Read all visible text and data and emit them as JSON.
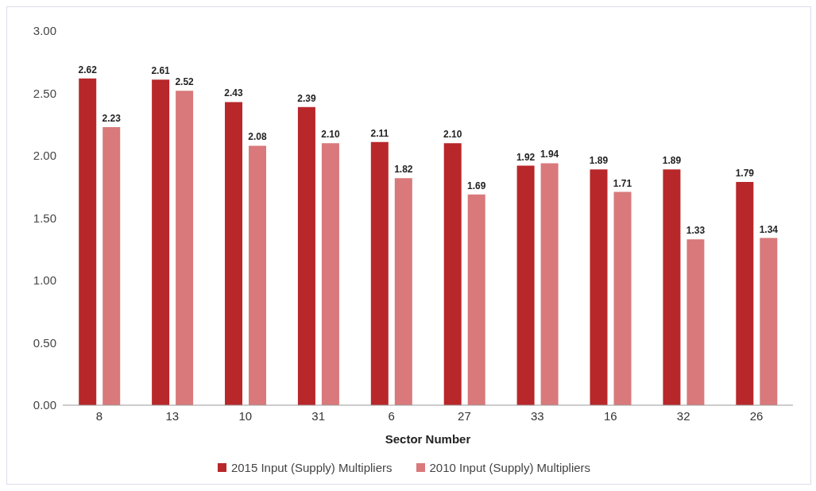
{
  "chart_data": {
    "type": "bar",
    "xlabel": "Sector Number",
    "categories": [
      "8",
      "13",
      "10",
      "31",
      "6",
      "27",
      "33",
      "16",
      "32",
      "26"
    ],
    "series": [
      {
        "name": "2015 Input (Supply) Multipliers",
        "color": "#b8272a",
        "values": [
          2.62,
          2.61,
          2.43,
          2.39,
          2.11,
          2.1,
          1.92,
          1.89,
          1.89,
          1.79
        ],
        "value_labels": [
          "2.62",
          "2.61",
          "2.43",
          "2.39",
          "2.11",
          "2.10",
          "1.92",
          "1.89",
          "1.89",
          "1.79"
        ]
      },
      {
        "name": "2010 Input (Supply) Multipliers",
        "color": "#d9797b",
        "values": [
          2.23,
          2.52,
          2.08,
          2.1,
          1.82,
          1.69,
          1.94,
          1.71,
          1.33,
          1.34
        ],
        "value_labels": [
          "2.23",
          "2.52",
          "2.08",
          "2.10",
          "1.82",
          "1.69",
          "1.94",
          "1.71",
          "1.33",
          "1.34"
        ]
      }
    ],
    "ylim": [
      0,
      3
    ],
    "yticks": [
      {
        "value": 0,
        "label": "0.00"
      },
      {
        "value": 0.5,
        "label": "0.50"
      },
      {
        "value": 1,
        "label": "1.00"
      },
      {
        "value": 1.5,
        "label": "1.50"
      },
      {
        "value": 2,
        "label": "2.00"
      },
      {
        "value": 2.5,
        "label": "2.50"
      },
      {
        "value": 3,
        "label": "3.00"
      }
    ],
    "grid": false,
    "legend": "bottom"
  }
}
